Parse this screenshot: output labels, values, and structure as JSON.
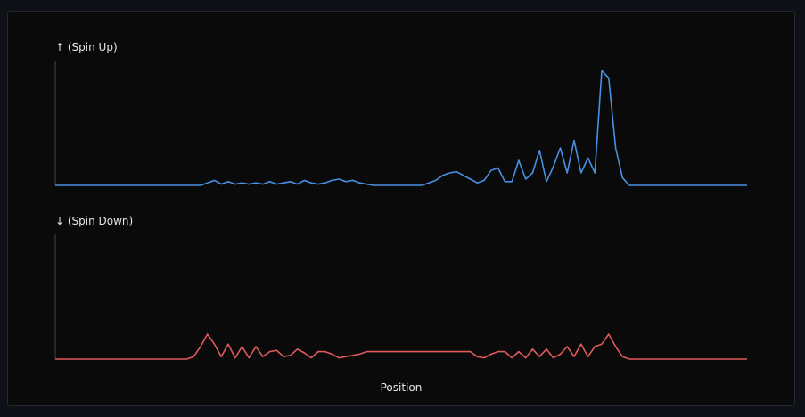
{
  "colors": {
    "background": "#0a0a0a",
    "page": "#0d1117",
    "spin_up": "#4a90e2",
    "spin_down": "#e05a5a",
    "axis": "#444444"
  },
  "chart_data": [
    {
      "type": "line",
      "title": "↑ (Spin Up)",
      "xlabel": "",
      "ylabel": "",
      "grid": false,
      "legend": "none",
      "xlim": [
        0,
        100
      ],
      "ylim": [
        0,
        1
      ],
      "x": [
        0,
        1,
        2,
        3,
        4,
        5,
        6,
        7,
        8,
        9,
        10,
        11,
        12,
        13,
        14,
        15,
        16,
        17,
        18,
        19,
        20,
        21,
        22,
        23,
        24,
        25,
        26,
        27,
        28,
        29,
        30,
        31,
        32,
        33,
        34,
        35,
        36,
        37,
        38,
        39,
        40,
        41,
        42,
        43,
        44,
        45,
        46,
        47,
        48,
        49,
        50,
        51,
        52,
        53,
        54,
        55,
        56,
        57,
        58,
        59,
        60,
        61,
        62,
        63,
        64,
        65,
        66,
        67,
        68,
        69,
        70,
        71,
        72,
        73,
        74,
        75,
        76,
        77,
        78,
        79,
        80,
        81,
        82,
        83,
        84,
        85,
        86,
        87,
        88,
        89,
        90,
        91,
        92,
        93,
        94,
        95,
        96,
        97,
        98,
        99,
        100
      ],
      "values": [
        0,
        0,
        0,
        0,
        0,
        0,
        0,
        0,
        0,
        0,
        0,
        0,
        0,
        0,
        0,
        0,
        0,
        0,
        0,
        0,
        0,
        0,
        0.02,
        0.04,
        0.01,
        0.03,
        0.01,
        0.02,
        0.01,
        0.02,
        0.01,
        0.03,
        0.01,
        0.02,
        0.03,
        0.01,
        0.04,
        0.02,
        0.01,
        0.02,
        0.04,
        0.05,
        0.03,
        0.04,
        0.02,
        0.01,
        0,
        0,
        0,
        0,
        0,
        0,
        0,
        0,
        0.02,
        0.04,
        0.08,
        0.1,
        0.11,
        0.08,
        0.05,
        0.02,
        0.04,
        0.12,
        0.14,
        0.03,
        0.03,
        0.2,
        0.05,
        0.1,
        0.28,
        0.03,
        0.15,
        0.3,
        0.1,
        0.36,
        0.1,
        0.22,
        0.1,
        0.92,
        0.86,
        0.3,
        0.06,
        0,
        0,
        0,
        0,
        0,
        0,
        0,
        0,
        0,
        0,
        0,
        0,
        0,
        0,
        0,
        0,
        0,
        0
      ]
    },
    {
      "type": "line",
      "title": "↓ (Spin Down)",
      "xlabel": "Position",
      "ylabel": "",
      "grid": false,
      "legend": "none",
      "xlim": [
        0,
        100
      ],
      "ylim": [
        0,
        1
      ],
      "x": [
        0,
        1,
        2,
        3,
        4,
        5,
        6,
        7,
        8,
        9,
        10,
        11,
        12,
        13,
        14,
        15,
        16,
        17,
        18,
        19,
        20,
        21,
        22,
        23,
        24,
        25,
        26,
        27,
        28,
        29,
        30,
        31,
        32,
        33,
        34,
        35,
        36,
        37,
        38,
        39,
        40,
        41,
        42,
        43,
        44,
        45,
        46,
        47,
        48,
        49,
        50,
        51,
        52,
        53,
        54,
        55,
        56,
        57,
        58,
        59,
        60,
        61,
        62,
        63,
        64,
        65,
        66,
        67,
        68,
        69,
        70,
        71,
        72,
        73,
        74,
        75,
        76,
        77,
        78,
        79,
        80,
        81,
        82,
        83,
        84,
        85,
        86,
        87,
        88,
        89,
        90,
        91,
        92,
        93,
        94,
        95,
        96,
        97,
        98,
        99,
        100
      ],
      "values": [
        0,
        0,
        0,
        0,
        0,
        0,
        0,
        0,
        0,
        0,
        0,
        0,
        0,
        0,
        0,
        0,
        0,
        0,
        0,
        0,
        0.02,
        0.1,
        0.2,
        0.12,
        0.02,
        0.12,
        0.01,
        0.1,
        0.01,
        0.1,
        0.02,
        0.06,
        0.07,
        0.02,
        0.03,
        0.08,
        0.05,
        0.01,
        0.06,
        0.06,
        0.04,
        0.01,
        0.02,
        0.03,
        0.04,
        0.06,
        0.06,
        0.06,
        0.06,
        0.06,
        0.06,
        0.06,
        0.06,
        0.06,
        0.06,
        0.06,
        0.06,
        0.06,
        0.06,
        0.06,
        0.06,
        0.02,
        0.01,
        0.04,
        0.06,
        0.06,
        0.01,
        0.06,
        0.01,
        0.08,
        0.02,
        0.08,
        0.01,
        0.04,
        0.1,
        0.02,
        0.12,
        0.02,
        0.1,
        0.12,
        0.2,
        0.1,
        0.02,
        0,
        0,
        0,
        0,
        0,
        0,
        0,
        0,
        0,
        0,
        0,
        0,
        0,
        0,
        0,
        0,
        0,
        0
      ]
    }
  ]
}
